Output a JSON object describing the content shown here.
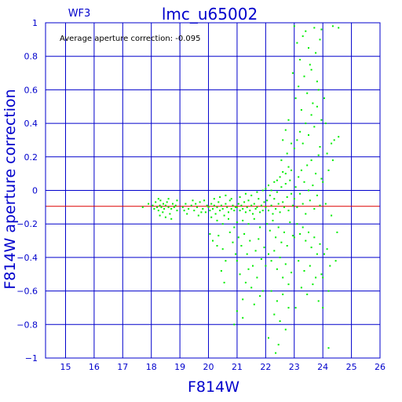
{
  "chart_data": {
    "type": "scatter",
    "chip_label": "WF3",
    "title": "lmc_u65002",
    "annotation": "Average aperture correction: -0.095",
    "xlabel": "F814W",
    "ylabel": "F814W aperture correction",
    "xlim": [
      14.3,
      26
    ],
    "ylim": [
      -1,
      1
    ],
    "x_ticks": [
      15,
      16,
      17,
      18,
      19,
      20,
      21,
      22,
      23,
      24,
      25,
      26
    ],
    "y_ticks": [
      -1,
      -0.8,
      -0.6,
      -0.4,
      -0.2,
      0,
      0.2,
      0.4,
      0.6,
      0.8,
      1
    ],
    "y_tick_labels": [
      "−1",
      "−0.8",
      "−0.6",
      "−0.4",
      "−0.2",
      "0",
      "0.2",
      "0.4",
      "0.6",
      "0.8",
      "1"
    ],
    "grid": true,
    "reference_line": {
      "y": -0.095,
      "color": "#dd0000"
    },
    "colors": {
      "axis": "#0000cc",
      "points": "#00ee00",
      "reference": "#dd0000"
    },
    "series": [
      {
        "values": [
          [
            17.7,
            -0.1
          ],
          [
            17.9,
            -0.08
          ],
          [
            18.05,
            -0.09
          ],
          [
            18.1,
            -0.11
          ],
          [
            18.15,
            -0.07
          ],
          [
            18.2,
            -0.1
          ],
          [
            18.25,
            -0.12
          ],
          [
            18.3,
            -0.09
          ],
          [
            18.32,
            -0.06
          ],
          [
            18.35,
            -0.1
          ],
          [
            18.4,
            -0.13
          ],
          [
            18.42,
            -0.08
          ],
          [
            18.45,
            -0.11
          ],
          [
            18.5,
            -0.09
          ],
          [
            18.55,
            -0.07
          ],
          [
            18.6,
            -0.1
          ],
          [
            18.65,
            -0.14
          ],
          [
            18.7,
            -0.11
          ],
          [
            18.75,
            -0.08
          ],
          [
            18.8,
            -0.1
          ],
          [
            18.85,
            -0.09
          ],
          [
            18.9,
            -0.12
          ],
          [
            18.3,
            -0.15
          ],
          [
            18.5,
            -0.16
          ],
          [
            18.7,
            -0.17
          ],
          [
            18.9,
            -0.06
          ],
          [
            18.25,
            -0.05
          ],
          [
            18.6,
            -0.05
          ],
          [
            19.1,
            -0.1
          ],
          [
            19.2,
            -0.08
          ],
          [
            19.3,
            -0.11
          ],
          [
            19.4,
            -0.09
          ],
          [
            19.5,
            -0.12
          ],
          [
            19.6,
            -0.1
          ],
          [
            19.7,
            -0.07
          ],
          [
            19.8,
            -0.11
          ],
          [
            19.9,
            -0.13
          ],
          [
            19.95,
            -0.09
          ],
          [
            19.25,
            -0.14
          ],
          [
            19.45,
            -0.06
          ],
          [
            19.65,
            -0.15
          ],
          [
            19.85,
            -0.06
          ],
          [
            19.15,
            -0.12
          ],
          [
            19.55,
            -0.08
          ],
          [
            19.75,
            -0.13
          ],
          [
            20.0,
            -0.1
          ],
          [
            20.05,
            -0.12
          ],
          [
            20.1,
            -0.08
          ],
          [
            20.15,
            -0.11
          ],
          [
            20.2,
            -0.09
          ],
          [
            20.25,
            -0.14
          ],
          [
            20.3,
            -0.1
          ],
          [
            20.35,
            -0.07
          ],
          [
            20.4,
            -0.12
          ],
          [
            20.45,
            -0.09
          ],
          [
            20.5,
            -0.11
          ],
          [
            20.55,
            -0.15
          ],
          [
            20.6,
            -0.08
          ],
          [
            20.65,
            -0.1
          ],
          [
            20.7,
            -0.13
          ],
          [
            20.75,
            -0.06
          ],
          [
            20.8,
            -0.11
          ],
          [
            20.85,
            -0.09
          ],
          [
            20.9,
            -0.12
          ],
          [
            20.95,
            -0.1
          ],
          [
            20.1,
            -0.16
          ],
          [
            20.3,
            -0.18
          ],
          [
            20.5,
            -0.2
          ],
          [
            20.7,
            -0.17
          ],
          [
            20.9,
            -0.22
          ],
          [
            20.2,
            -0.05
          ],
          [
            20.4,
            -0.04
          ],
          [
            20.6,
            -0.03
          ],
          [
            20.8,
            -0.05
          ],
          [
            20.05,
            -0.26
          ],
          [
            20.15,
            -0.3
          ],
          [
            20.35,
            -0.27
          ],
          [
            20.5,
            -0.35
          ],
          [
            20.6,
            -0.42
          ],
          [
            20.45,
            -0.48
          ],
          [
            20.55,
            -0.55
          ],
          [
            20.3,
            -0.33
          ],
          [
            20.75,
            -0.25
          ],
          [
            20.85,
            -0.31
          ],
          [
            21.0,
            -0.1
          ],
          [
            21.05,
            -0.08
          ],
          [
            21.1,
            -0.12
          ],
          [
            21.15,
            -0.09
          ],
          [
            21.2,
            -0.11
          ],
          [
            21.25,
            -0.07
          ],
          [
            21.3,
            -0.13
          ],
          [
            21.35,
            -0.1
          ],
          [
            21.4,
            -0.06
          ],
          [
            21.45,
            -0.12
          ],
          [
            21.5,
            -0.09
          ],
          [
            21.55,
            -0.14
          ],
          [
            21.6,
            -0.08
          ],
          [
            21.65,
            -0.11
          ],
          [
            21.7,
            -0.1
          ],
          [
            21.75,
            -0.05
          ],
          [
            21.8,
            -0.13
          ],
          [
            21.85,
            -0.09
          ],
          [
            21.9,
            -0.12
          ],
          [
            21.95,
            -0.07
          ],
          [
            21.1,
            -0.04
          ],
          [
            21.3,
            -0.02
          ],
          [
            21.5,
            -0.03
          ],
          [
            21.7,
            -0.01
          ],
          [
            21.9,
            0.0
          ],
          [
            21.2,
            -0.18
          ],
          [
            21.4,
            -0.2
          ],
          [
            21.6,
            -0.17
          ],
          [
            21.8,
            -0.22
          ],
          [
            21.0,
            -0.19
          ],
          [
            21.05,
            -0.28
          ],
          [
            21.15,
            -0.33
          ],
          [
            21.25,
            -0.26
          ],
          [
            21.35,
            -0.38
          ],
          [
            21.45,
            -0.3
          ],
          [
            21.55,
            -0.45
          ],
          [
            21.65,
            -0.36
          ],
          [
            21.75,
            -0.29
          ],
          [
            21.85,
            -0.41
          ],
          [
            21.95,
            -0.34
          ],
          [
            21.1,
            -0.5
          ],
          [
            21.3,
            -0.55
          ],
          [
            21.5,
            -0.58
          ],
          [
            21.7,
            -0.52
          ],
          [
            21.9,
            -0.6
          ],
          [
            21.2,
            -0.65
          ],
          [
            21.6,
            -0.68
          ],
          [
            21.4,
            -0.47
          ],
          [
            21.8,
            -0.63
          ],
          [
            21.0,
            -0.72
          ],
          [
            20.9,
            -0.8
          ],
          [
            21.2,
            -0.76
          ],
          [
            21.0,
            -0.42
          ],
          [
            20.95,
            -0.38
          ],
          [
            22.0,
            -0.1
          ],
          [
            22.05,
            -0.06
          ],
          [
            22.1,
            -0.12
          ],
          [
            22.15,
            -0.03
          ],
          [
            22.2,
            -0.09
          ],
          [
            22.25,
            -0.14
          ],
          [
            22.3,
            -0.05
          ],
          [
            22.35,
            -0.11
          ],
          [
            22.4,
            -0.01
          ],
          [
            22.45,
            -0.08
          ],
          [
            22.5,
            -0.13
          ],
          [
            22.55,
            0.02
          ],
          [
            22.6,
            -0.07
          ],
          [
            22.65,
            -0.1
          ],
          [
            22.7,
            0.04
          ],
          [
            22.75,
            -0.04
          ],
          [
            22.8,
            -0.12
          ],
          [
            22.85,
            0.06
          ],
          [
            22.9,
            -0.02
          ],
          [
            22.95,
            -0.09
          ],
          [
            22.1,
            0.03
          ],
          [
            22.3,
            0.05
          ],
          [
            22.5,
            0.08
          ],
          [
            22.7,
            0.1
          ],
          [
            22.9,
            0.12
          ],
          [
            22.2,
            0.0
          ],
          [
            22.4,
            0.06
          ],
          [
            22.6,
            0.11
          ],
          [
            22.8,
            0.14
          ],
          [
            22.0,
            0.01
          ],
          [
            22.05,
            -0.2
          ],
          [
            22.15,
            -0.24
          ],
          [
            22.25,
            -0.18
          ],
          [
            22.35,
            -0.28
          ],
          [
            22.45,
            -0.22
          ],
          [
            22.55,
            -0.31
          ],
          [
            22.65,
            -0.25
          ],
          [
            22.75,
            -0.33
          ],
          [
            22.85,
            -0.19
          ],
          [
            22.95,
            -0.27
          ],
          [
            22.1,
            -0.38
          ],
          [
            22.2,
            -0.42
          ],
          [
            22.3,
            -0.36
          ],
          [
            22.4,
            -0.47
          ],
          [
            22.5,
            -0.4
          ],
          [
            22.6,
            -0.52
          ],
          [
            22.7,
            -0.44
          ],
          [
            22.8,
            -0.56
          ],
          [
            22.9,
            -0.49
          ],
          [
            22.0,
            -0.45
          ],
          [
            22.2,
            -0.6
          ],
          [
            22.4,
            -0.66
          ],
          [
            22.6,
            -0.62
          ],
          [
            22.8,
            -0.7
          ],
          [
            22.3,
            -0.74
          ],
          [
            22.5,
            -0.78
          ],
          [
            22.7,
            -0.83
          ],
          [
            22.1,
            -0.88
          ],
          [
            22.45,
            -0.92
          ],
          [
            22.35,
            -0.97
          ],
          [
            22.6,
            0.3
          ],
          [
            22.7,
            0.36
          ],
          [
            22.8,
            0.42
          ],
          [
            22.55,
            0.18
          ],
          [
            22.75,
            0.22
          ],
          [
            22.9,
            0.28
          ],
          [
            22.95,
            0.7
          ],
          [
            23.0,
            -0.05
          ],
          [
            23.05,
            0.02
          ],
          [
            23.1,
            -0.1
          ],
          [
            23.15,
            0.08
          ],
          [
            23.2,
            -0.02
          ],
          [
            23.25,
            0.12
          ],
          [
            23.3,
            -0.08
          ],
          [
            23.35,
            0.05
          ],
          [
            23.4,
            -0.14
          ],
          [
            23.45,
            0.15
          ],
          [
            23.5,
            0.0
          ],
          [
            23.55,
            -0.06
          ],
          [
            23.6,
            0.18
          ],
          [
            23.65,
            0.03
          ],
          [
            23.7,
            -0.11
          ],
          [
            23.75,
            0.1
          ],
          [
            23.8,
            -0.03
          ],
          [
            23.85,
            0.21
          ],
          [
            23.9,
            -0.09
          ],
          [
            23.95,
            0.07
          ],
          [
            23.0,
            0.25
          ],
          [
            23.1,
            0.3
          ],
          [
            23.2,
            0.35
          ],
          [
            23.3,
            0.28
          ],
          [
            23.4,
            0.4
          ],
          [
            23.5,
            0.33
          ],
          [
            23.6,
            0.45
          ],
          [
            23.7,
            0.38
          ],
          [
            23.8,
            0.5
          ],
          [
            23.9,
            0.26
          ],
          [
            23.05,
            0.55
          ],
          [
            23.15,
            0.62
          ],
          [
            23.25,
            0.48
          ],
          [
            23.35,
            0.68
          ],
          [
            23.45,
            0.58
          ],
          [
            23.55,
            0.75
          ],
          [
            23.65,
            0.52
          ],
          [
            23.75,
            0.82
          ],
          [
            23.85,
            0.6
          ],
          [
            23.95,
            0.42
          ],
          [
            23.1,
            0.88
          ],
          [
            23.3,
            0.92
          ],
          [
            23.5,
            0.85
          ],
          [
            23.7,
            0.97
          ],
          [
            23.9,
            0.9
          ],
          [
            23.2,
            0.78
          ],
          [
            23.4,
            0.95
          ],
          [
            23.6,
            0.72
          ],
          [
            23.8,
            0.65
          ],
          [
            23.0,
            0.98
          ],
          [
            23.1,
            -0.2
          ],
          [
            23.2,
            -0.26
          ],
          [
            23.3,
            -0.22
          ],
          [
            23.4,
            -0.3
          ],
          [
            23.5,
            -0.25
          ],
          [
            23.6,
            -0.34
          ],
          [
            23.7,
            -0.28
          ],
          [
            23.8,
            -0.38
          ],
          [
            23.9,
            -0.32
          ],
          [
            23.0,
            -0.28
          ],
          [
            23.15,
            -0.42
          ],
          [
            23.35,
            -0.48
          ],
          [
            23.55,
            -0.45
          ],
          [
            23.75,
            -0.52
          ],
          [
            23.95,
            -0.5
          ],
          [
            23.25,
            -0.58
          ],
          [
            23.45,
            -0.62
          ],
          [
            23.65,
            -0.56
          ],
          [
            23.85,
            -0.66
          ],
          [
            23.05,
            -0.7
          ],
          [
            24.0,
            0.05
          ],
          [
            24.1,
            -0.08
          ],
          [
            24.2,
            0.12
          ],
          [
            24.3,
            -0.15
          ],
          [
            24.4,
            0.3
          ],
          [
            24.5,
            -0.25
          ],
          [
            24.05,
            -0.38
          ],
          [
            24.15,
            0.22
          ],
          [
            24.25,
            -0.45
          ],
          [
            24.35,
            0.18
          ],
          [
            24.0,
            -0.52
          ],
          [
            24.1,
            0.4
          ],
          [
            24.2,
            -0.6
          ],
          [
            24.3,
            0.28
          ],
          [
            24.05,
            0.55
          ],
          [
            24.15,
            -0.35
          ],
          [
            24.45,
            -0.42
          ],
          [
            24.55,
            0.32
          ],
          [
            24.35,
            0.98
          ],
          [
            24.55,
            0.97
          ],
          [
            24.2,
            -0.94
          ],
          [
            24.0,
            -0.7
          ],
          [
            23.95,
            0.96
          ]
        ]
      }
    ]
  }
}
